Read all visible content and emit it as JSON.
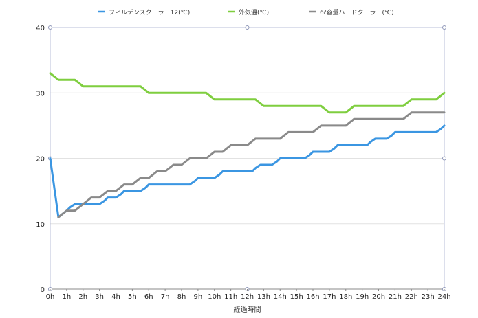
{
  "chart_data": {
    "type": "line",
    "xlabel": "経過時間",
    "ylabel": "",
    "ylim": [
      0,
      40
    ],
    "yticks": [
      0,
      10,
      20,
      30,
      40
    ],
    "grid": true,
    "legend_position": "top",
    "categories": [
      "0h",
      "1h",
      "2h",
      "3h",
      "4h",
      "5h",
      "6h",
      "7h",
      "8h",
      "9h",
      "10h",
      "11h",
      "12h",
      "13h",
      "14h",
      "15h",
      "16h",
      "17h",
      "18h",
      "19h",
      "20h",
      "21h",
      "22h",
      "23h",
      "24h"
    ],
    "series": [
      {
        "name": "フィルデンスクーラー12(℃)",
        "color": "#3b96e2",
        "values": [
          20,
          11,
          12,
          12.5,
          13,
          13,
          13,
          13,
          13.5,
          14,
          14,
          14.5,
          15,
          15,
          15,
          15.5,
          16,
          16,
          16,
          16,
          16,
          16,
          16,
          16.5,
          17,
          17,
          17,
          17.5,
          18,
          18,
          18,
          18,
          18,
          18.5,
          19,
          19,
          19,
          19.5,
          20,
          20,
          20,
          20,
          20,
          20.5,
          21,
          21,
          21,
          21.5,
          22,
          22,
          22,
          22,
          22,
          22.5,
          23,
          23,
          23,
          23.5,
          24,
          24,
          24,
          24,
          24,
          24,
          24,
          24,
          24,
          24.5,
          25,
          25,
          25
        ],
        "x": [
          0,
          0.5,
          1,
          1.2,
          1.5,
          2,
          2.5,
          3,
          3.3,
          3.5,
          4,
          4.3,
          4.5,
          5,
          5.5,
          5.8,
          6,
          6.5,
          7,
          7.5,
          8,
          8.3,
          8.5,
          8.8,
          9,
          9.5,
          10,
          10.3,
          10.5,
          11,
          11.5,
          12,
          12.3,
          12.5,
          12.8,
          13,
          13.5,
          13.8,
          14,
          14.5,
          15,
          15.3,
          15.5,
          15.8,
          16,
          16.5,
          17,
          17.3,
          17.5,
          18,
          18.5,
          19,
          19.3,
          19.5,
          19.8,
          20,
          20.5,
          20.8,
          21,
          21.5,
          22,
          22.3,
          22.5,
          22.8,
          23,
          23.3,
          23.5,
          23.8,
          24,
          24,
          24
        ]
      },
      {
        "name": "外気温(℃)",
        "color": "#7fce3f",
        "x": [
          0,
          0.5,
          1,
          1.5,
          2,
          2.5,
          3,
          3.5,
          4,
          4.5,
          5,
          5.5,
          6,
          6.5,
          7,
          7.5,
          8,
          8.5,
          9,
          9.5,
          10,
          10.5,
          11,
          11.5,
          12,
          12.5,
          13,
          13.5,
          14,
          14.5,
          15,
          15.5,
          16,
          16.5,
          17,
          17.5,
          18,
          18.5,
          19,
          19.5,
          20,
          20.5,
          21,
          21.5,
          22,
          22.5,
          23,
          23.5,
          24
        ],
        "values": [
          33,
          32,
          32,
          32,
          31,
          31,
          31,
          31,
          31,
          31,
          31,
          31,
          30,
          30,
          30,
          30,
          30,
          30,
          30,
          30,
          29,
          29,
          29,
          29,
          29,
          29,
          28,
          28,
          28,
          28,
          28,
          28,
          28,
          28,
          27,
          27,
          27,
          28,
          28,
          28,
          28,
          28,
          28,
          28,
          29,
          29,
          29,
          29,
          30
        ]
      },
      {
        "name": "6ℓ容量ハードクーラー(℃)",
        "color": "#8a8a8a",
        "x": [
          0.5,
          1,
          1.5,
          2,
          2.5,
          3,
          3.5,
          4,
          4.5,
          5,
          5.5,
          6,
          6.5,
          7,
          7.5,
          8,
          8.5,
          9,
          9.5,
          10,
          10.5,
          11,
          11.5,
          12,
          12.5,
          13,
          13.5,
          14,
          14.5,
          15,
          15.5,
          16,
          16.5,
          17,
          17.5,
          18,
          18.5,
          19,
          19.5,
          20,
          20.5,
          21,
          21.5,
          22,
          22.5,
          23,
          23.5,
          24
        ],
        "values": [
          11,
          12,
          12,
          13,
          14,
          14,
          15,
          15,
          16,
          16,
          17,
          17,
          18,
          18,
          19,
          19,
          20,
          20,
          20,
          21,
          21,
          22,
          22,
          22,
          23,
          23,
          23,
          23,
          24,
          24,
          24,
          24,
          25,
          25,
          25,
          25,
          26,
          26,
          26,
          26,
          26,
          26,
          26,
          27,
          27,
          27,
          27,
          27
        ]
      }
    ]
  }
}
